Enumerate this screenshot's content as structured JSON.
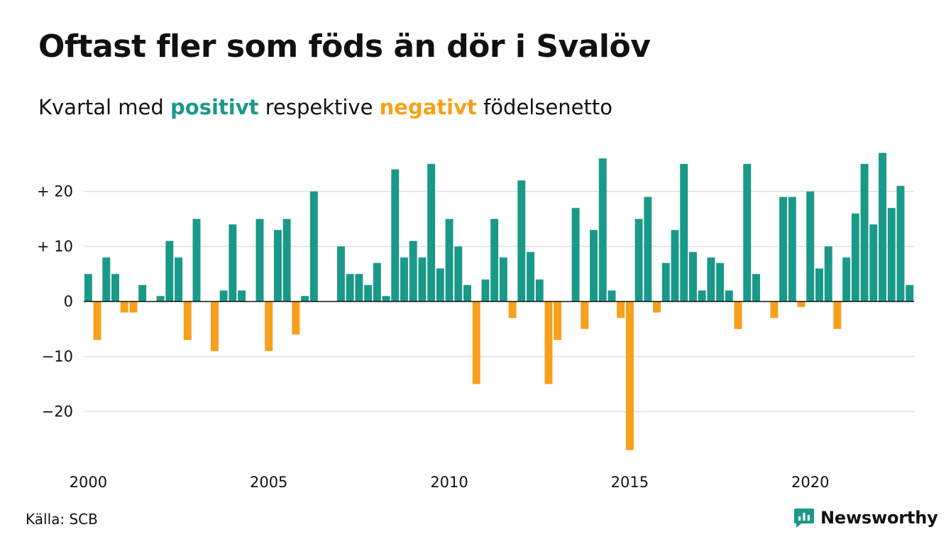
{
  "colors": {
    "positive": "#1a9988",
    "negative": "#f7a01b",
    "grid": "#e0e0e0",
    "axis": "#111111"
  },
  "header": {
    "title": "Oftast fler som föds än dör i Svalöv",
    "subtitle_pre": "Kvartal med ",
    "subtitle_positive": "positivt",
    "subtitle_mid": " respektive ",
    "subtitle_negative": "negativt",
    "subtitle_post": " födelsenetto"
  },
  "footer": {
    "source": "Källa: SCB",
    "brand": "Newsworthy",
    "brand_icon": "newsworthy-logo-icon"
  },
  "chart_data": {
    "type": "bar",
    "x_start_year": 2000,
    "periods_per_year": 4,
    "ylim": [
      -27,
      27
    ],
    "yticks": [
      {
        "value": 20,
        "label": "+ 20"
      },
      {
        "value": 10,
        "label": "+ 10"
      },
      {
        "value": 0,
        "label": "0"
      },
      {
        "value": -10,
        "label": "−10"
      },
      {
        "value": -20,
        "label": "−20"
      }
    ],
    "xticks": [
      "2000",
      "2005",
      "2010",
      "2015",
      "2020"
    ],
    "grid": true,
    "values": [
      5,
      -7,
      8,
      5,
      -2,
      -2,
      3,
      0,
      1,
      11,
      8,
      -7,
      15,
      0,
      -9,
      2,
      14,
      2,
      0,
      15,
      -9,
      13,
      15,
      -6,
      1,
      20,
      0,
      0,
      10,
      5,
      5,
      3,
      7,
      1,
      24,
      8,
      11,
      8,
      25,
      6,
      15,
      10,
      3,
      -15,
      4,
      15,
      8,
      -3,
      22,
      9,
      4,
      -15,
      -7,
      0,
      17,
      -5,
      13,
      26,
      2,
      -3,
      -27,
      15,
      19,
      -2,
      7,
      13,
      25,
      9,
      2,
      8,
      7,
      2,
      -5,
      25,
      5,
      0,
      -3,
      19,
      19,
      -1,
      20,
      6,
      10,
      -5,
      8,
      16,
      25,
      14,
      27,
      17,
      21,
      3
    ]
  }
}
